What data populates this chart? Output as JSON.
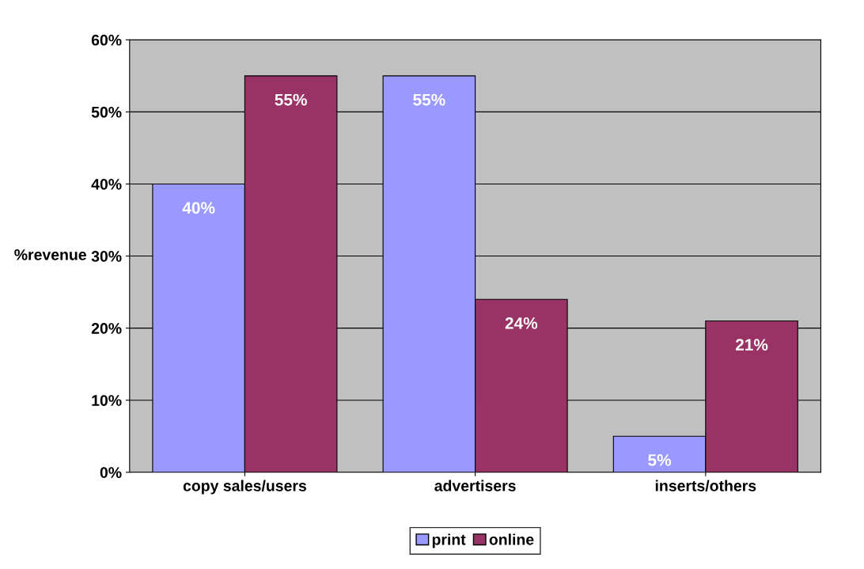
{
  "chart_data": {
    "type": "bar",
    "ylabel": "%revenue",
    "categories": [
      "copy sales/users",
      "advertisers",
      "inserts/others"
    ],
    "series": [
      {
        "name": "print",
        "color": "#9999ff",
        "values": [
          40,
          55,
          5
        ],
        "value_labels": [
          "40%",
          "55%",
          "5%"
        ]
      },
      {
        "name": "online",
        "color": "#993366",
        "values": [
          55,
          24,
          21
        ],
        "value_labels": [
          "55%",
          "24%",
          "21%"
        ]
      }
    ],
    "ylim": [
      0,
      60
    ],
    "yticks": [
      {
        "value": 0,
        "label": "0%"
      },
      {
        "value": 10,
        "label": "10%"
      },
      {
        "value": 20,
        "label": "20%"
      },
      {
        "value": 30,
        "label": "30%"
      },
      {
        "value": 40,
        "label": "40%"
      },
      {
        "value": 50,
        "label": "50%"
      },
      {
        "value": 60,
        "label": "60%"
      }
    ],
    "grid": "y",
    "legend": "bottom"
  }
}
